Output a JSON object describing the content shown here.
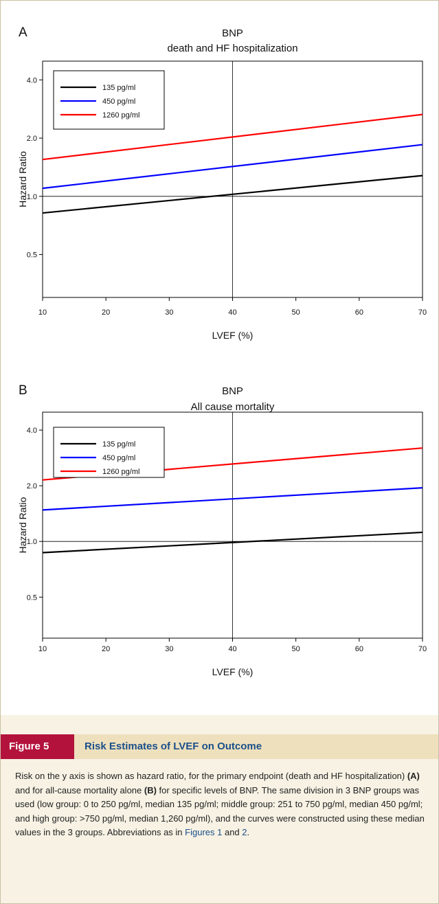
{
  "chart_data": [
    {
      "type": "line",
      "panel": "A",
      "title": "BNP",
      "subtitle": "death and HF hospitalization",
      "xlabel": "LVEF (%)",
      "ylabel": "Hazard Ratio",
      "y_scale": "log",
      "xlim": [
        10,
        70
      ],
      "ylim": [
        0.3,
        5.0
      ],
      "x_ticks": [
        10,
        20,
        30,
        40,
        50,
        60,
        70
      ],
      "y_ticks": [
        0.5,
        1.0,
        2.0,
        4.0
      ],
      "y_tick_labels": [
        "0.5",
        "1.0",
        "2.0",
        "4.0"
      ],
      "reference_lines": {
        "x": 40,
        "y": 1.0
      },
      "legend_position": "top-left",
      "series": [
        {
          "name": "135 pg/ml",
          "color": "#000000",
          "x": [
            10,
            70
          ],
          "y": [
            0.82,
            1.28
          ]
        },
        {
          "name": "450  pg/ml",
          "color": "#0000ff",
          "x": [
            10,
            70
          ],
          "y": [
            1.1,
            1.85
          ]
        },
        {
          "name": "1260 pg/ml",
          "color": "#ff0000",
          "x": [
            10,
            70
          ],
          "y": [
            1.55,
            2.65
          ]
        }
      ]
    },
    {
      "type": "line",
      "panel": "B",
      "title": "BNP",
      "subtitle": "All cause mortality",
      "xlabel": "LVEF (%)",
      "ylabel": "Hazard Ratio",
      "y_scale": "log",
      "xlim": [
        10,
        70
      ],
      "ylim": [
        0.3,
        5.0
      ],
      "x_ticks": [
        10,
        20,
        30,
        40,
        50,
        60,
        70
      ],
      "y_ticks": [
        0.5,
        1.0,
        2.0,
        4.0
      ],
      "y_tick_labels": [
        "0.5",
        "1.0",
        "2.0",
        "4.0"
      ],
      "reference_lines": {
        "x": 40,
        "y": 1.0
      },
      "legend_position": "top-left",
      "series": [
        {
          "name": "135 pg/ml",
          "color": "#000000",
          "x": [
            10,
            70
          ],
          "y": [
            0.87,
            1.12
          ]
        },
        {
          "name": "450 pg/ml",
          "color": "#0000ff",
          "x": [
            10,
            70
          ],
          "y": [
            1.48,
            1.95
          ]
        },
        {
          "name": "1260 pg/ml",
          "color": "#ff0000",
          "x": [
            10,
            70
          ],
          "y": [
            2.15,
            3.2
          ]
        }
      ]
    }
  ],
  "figure": {
    "label": "Figure 5",
    "title": "Risk Estimates of LVEF on Outcome",
    "label_color": "#b3123c",
    "title_color": "#1b4f8a"
  },
  "caption": {
    "p1": "Risk on the y axis is shown as hazard ratio, for the primary endpoint (death and HF hospitalization) ",
    "b1": "(A)",
    "p2": " and for all-cause mortality alone ",
    "b2": "(B)",
    "p3": " for specific levels of BNP. The same division in 3 BNP groups was used (low group: 0 to 250 pg/ml, median 135 pg/ml; middle group: 251 to 750 pg/ml, median 450 pg/ml; and high group: >750 pg/ml, median 1,260 pg/ml), and the curves were constructed using these median values in the 3 groups. Abbreviations as in ",
    "ref1": "Figures 1",
    "p4": " and ",
    "ref2": "2",
    "p5": "."
  }
}
